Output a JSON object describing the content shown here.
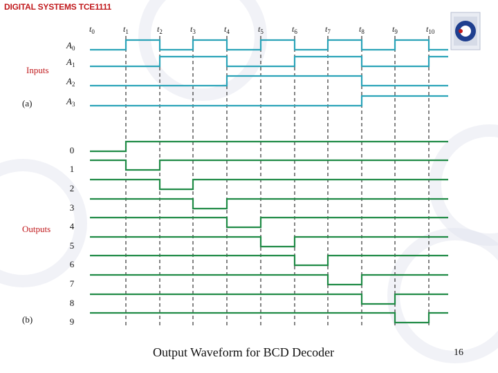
{
  "slide": {
    "header": "DIGITAL SYSTEMS TCE1111",
    "caption": "Output Waveform for BCD Decoder",
    "page_number": "16"
  },
  "diagram": {
    "time_labels": [
      {
        "base": "t",
        "sub": "0"
      },
      {
        "base": "t",
        "sub": "1"
      },
      {
        "base": "t",
        "sub": "2"
      },
      {
        "base": "t",
        "sub": "3"
      },
      {
        "base": "t",
        "sub": "4"
      },
      {
        "base": "t",
        "sub": "5"
      },
      {
        "base": "t",
        "sub": "6"
      },
      {
        "base": "t",
        "sub": "7"
      },
      {
        "base": "t",
        "sub": "8"
      },
      {
        "base": "t",
        "sub": "9"
      },
      {
        "base": "t",
        "sub": "10"
      }
    ],
    "section_a": {
      "group_label": "Inputs",
      "part_label": "(a)"
    },
    "section_b": {
      "group_label": "Outputs",
      "part_label": "(b)"
    },
    "inputs": [
      {
        "base": "A",
        "sub": "0"
      },
      {
        "base": "A",
        "sub": "1"
      },
      {
        "base": "A",
        "sub": "2"
      },
      {
        "base": "A",
        "sub": "3"
      }
    ],
    "outputs": [
      "0",
      "1",
      "2",
      "3",
      "4",
      "5",
      "6",
      "7",
      "8",
      "9"
    ],
    "colors": {
      "input_wave": "#2aa3b8",
      "output_wave": "#1f8a45",
      "dashed_line": "#333333",
      "group_label": "#c0181b",
      "label": "#111111"
    }
  }
}
